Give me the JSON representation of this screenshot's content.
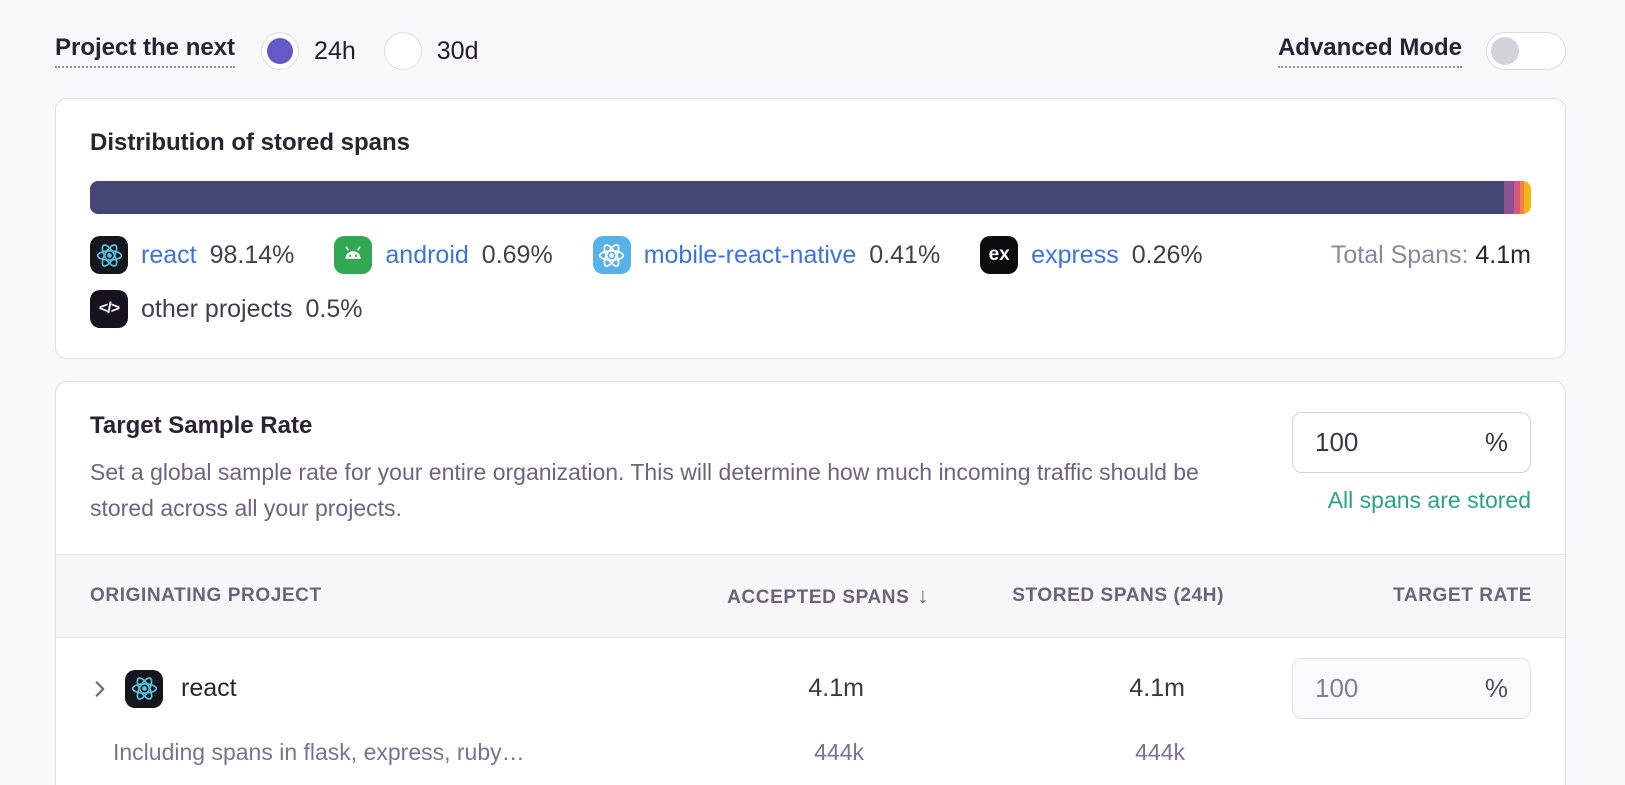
{
  "toolbar": {
    "project_label": "Project the next",
    "period_options": [
      {
        "label": "24h",
        "selected": true
      },
      {
        "label": "30d",
        "selected": false
      }
    ],
    "advanced_mode_label": "Advanced Mode",
    "advanced_mode_enabled": false
  },
  "distribution_card": {
    "title": "Distribution of stored spans",
    "total_label": "Total Spans:",
    "total_value": "4.1m",
    "segments": [
      {
        "name": "react",
        "pct": 98.14,
        "color": "#444674"
      },
      {
        "name": "android",
        "pct": 0.69,
        "color": "#8c5393"
      },
      {
        "name": "mobile-react-native",
        "pct": 0.41,
        "color": "#d6567f"
      },
      {
        "name": "express",
        "pct": 0.26,
        "color": "#f38150"
      },
      {
        "name": "other projects",
        "pct": 0.5,
        "color": "#f2b712"
      }
    ],
    "legend": [
      {
        "name": "react",
        "pct": "98.14%",
        "icon": "react-icon"
      },
      {
        "name": "android",
        "pct": "0.69%",
        "icon": "android-icon"
      },
      {
        "name": "mobile-react-native",
        "pct": "0.41%",
        "icon": "react-native-icon"
      },
      {
        "name": "express",
        "pct": "0.26%",
        "icon": "express-icon",
        "icon_text": "ex"
      },
      {
        "name": "other projects",
        "pct": "0.5%",
        "icon": "code-icon",
        "icon_text": "</>"
      }
    ]
  },
  "sample_rate_card": {
    "title": "Target Sample Rate",
    "description": "Set a global sample rate for your entire organization. This will determine how much incoming traffic should be stored across all your projects.",
    "rate_input": {
      "value": "100",
      "suffix": "%"
    },
    "status_text": "All spans are stored",
    "table": {
      "headers": {
        "project": "Originating Project",
        "accepted": "Accepted Spans",
        "sort_icon": "↓",
        "stored": "Stored Spans (24h)",
        "rate": "Target Rate"
      },
      "rows": [
        {
          "project": "react",
          "accepted": "4.1m",
          "stored": "4.1m",
          "rate": {
            "value": "100",
            "suffix": "%"
          },
          "sub_description": "Including spans in flask, express, ruby…",
          "sub_accepted": "444k",
          "sub_stored": "444k"
        }
      ]
    }
  },
  "colors": {
    "accent_purple": "#6559c5",
    "link_blue": "#3c74dd",
    "success_green": "#2ba185",
    "bar_react": "#444674",
    "bar_android": "#8c5393",
    "bar_mobile_react_native": "#d6567f",
    "bar_express": "#f38150",
    "bar_other": "#f2b712"
  }
}
